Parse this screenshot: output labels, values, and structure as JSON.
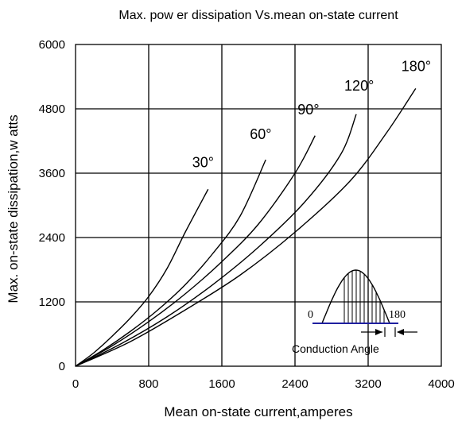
{
  "chart_data": {
    "type": "line",
    "title": "Max. pow er dissipation Vs.mean on-state current",
    "xlabel": "Mean  on-state current,amperes",
    "ylabel": "Max. on-state dissipation,w atts",
    "xlim": [
      0,
      4000
    ],
    "ylim": [
      0,
      6000
    ],
    "x_ticks": [
      "0",
      "800",
      "1600",
      "2400",
      "3200",
      "4000"
    ],
    "y_ticks": [
      "0",
      "1200",
      "2400",
      "3600",
      "4800",
      "6000"
    ],
    "grid": true,
    "series": [
      {
        "name": "30°",
        "x": [
          0,
          200,
          400,
          600,
          800,
          1000,
          1200,
          1450
        ],
        "y": [
          0,
          250,
          560,
          900,
          1300,
          1820,
          2500,
          3300
        ]
      },
      {
        "name": "60°",
        "x": [
          0,
          300,
          600,
          900,
          1200,
          1500,
          1800,
          2080
        ],
        "y": [
          0,
          300,
          650,
          1050,
          1520,
          2100,
          2800,
          3850
        ]
      },
      {
        "name": "90°",
        "x": [
          0,
          400,
          800,
          1200,
          1600,
          2000,
          2400,
          2620
        ],
        "y": [
          0,
          380,
          830,
          1350,
          1950,
          2650,
          3600,
          4300
        ]
      },
      {
        "name": "120°",
        "x": [
          0,
          500,
          1000,
          1500,
          2000,
          2500,
          2900,
          3070
        ],
        "y": [
          0,
          420,
          920,
          1520,
          2220,
          3050,
          3950,
          4700
        ]
      },
      {
        "name": "180°",
        "x": [
          0,
          600,
          1200,
          1800,
          2400,
          3000,
          3400,
          3720
        ],
        "y": [
          0,
          460,
          1050,
          1700,
          2500,
          3450,
          4350,
          5180
        ]
      }
    ]
  },
  "inset": {
    "start_label": "0",
    "end_label": "180",
    "caption": "Conduction  Angle"
  },
  "colors": {
    "line": "#000000",
    "baseline": "#1f1f9f",
    "background": "#ffffff"
  }
}
